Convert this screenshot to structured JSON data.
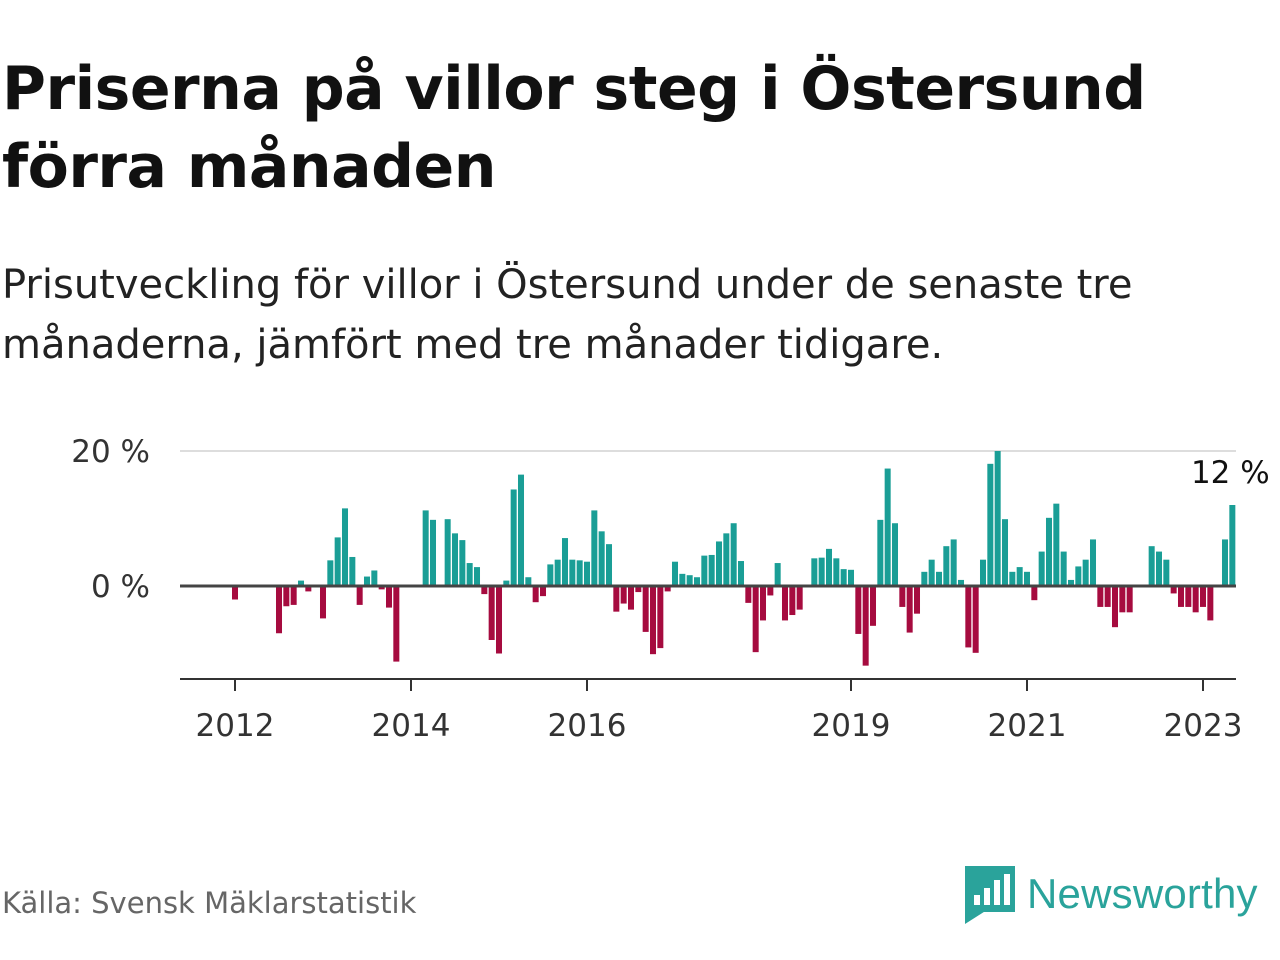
{
  "header": {
    "title": "Priserna på villor steg i Östersund förra månaden",
    "subtitle": "Prisutveckling för villor i Östersund under de senaste tre månaderna, jämfört med tre månader tidigare."
  },
  "footer": {
    "source": "Källa: Svensk Mäklarstatistik",
    "brand": "Newsworthy",
    "brand_icon": "newsworthy-logo-icon"
  },
  "colors": {
    "positive": "#1a9e96",
    "negative": "#a60b3f",
    "grid": "#dddddd",
    "zero_line": "#444444",
    "brand": "#2aa39b"
  },
  "chart_data": {
    "type": "bar",
    "title": "Priserna på villor steg i Östersund förra månaden",
    "subtitle": "Prisutveckling för villor i Östersund under de senaste tre månaderna, jämfört med tre månader tidigare.",
    "unit": "%",
    "x_start": "2011-06",
    "x_end": "2023-05",
    "ylim": [
      -14,
      20
    ],
    "y_ticks": [
      {
        "value": 0,
        "label": "0 %"
      },
      {
        "value": 20,
        "label": "20 %"
      }
    ],
    "x_ticks": [
      "2012",
      "2014",
      "2016",
      "2019",
      "2021",
      "2023"
    ],
    "grid": true,
    "annotation": {
      "month": "2023-05",
      "label": "12 %"
    },
    "series": [
      {
        "points": [
          {
            "month": "2012-01",
            "value": -2
          },
          {
            "month": "2012-07",
            "value": -7
          },
          {
            "month": "2012-08",
            "value": -3
          },
          {
            "month": "2012-09",
            "value": -2.8
          },
          {
            "month": "2012-10",
            "value": 0.8
          },
          {
            "month": "2012-11",
            "value": -0.8
          },
          {
            "month": "2013-01",
            "value": -4.8
          },
          {
            "month": "2013-02",
            "value": 3.8
          },
          {
            "month": "2013-03",
            "value": 7.2
          },
          {
            "month": "2013-04",
            "value": 11.5
          },
          {
            "month": "2013-05",
            "value": 4.3
          },
          {
            "month": "2013-06",
            "value": -2.8
          },
          {
            "month": "2013-07",
            "value": 1.4
          },
          {
            "month": "2013-08",
            "value": 2.3
          },
          {
            "month": "2013-09",
            "value": -0.5
          },
          {
            "month": "2013-10",
            "value": -3.2
          },
          {
            "month": "2013-11",
            "value": -11.2
          },
          {
            "month": "2014-03",
            "value": 11.2
          },
          {
            "month": "2014-04",
            "value": 9.8
          },
          {
            "month": "2014-06",
            "value": 9.9
          },
          {
            "month": "2014-07",
            "value": 7.8
          },
          {
            "month": "2014-08",
            "value": 6.8
          },
          {
            "month": "2014-09",
            "value": 3.4
          },
          {
            "month": "2014-10",
            "value": 2.8
          },
          {
            "month": "2014-11",
            "value": -1.2
          },
          {
            "month": "2014-12",
            "value": -8
          },
          {
            "month": "2015-01",
            "value": -10
          },
          {
            "month": "2015-02",
            "value": 0.8
          },
          {
            "month": "2015-03",
            "value": 14.3
          },
          {
            "month": "2015-04",
            "value": 16.5
          },
          {
            "month": "2015-05",
            "value": 1.3
          },
          {
            "month": "2015-06",
            "value": -2.4
          },
          {
            "month": "2015-07",
            "value": -1.5
          },
          {
            "month": "2015-08",
            "value": 3.2
          },
          {
            "month": "2015-09",
            "value": 3.9
          },
          {
            "month": "2015-10",
            "value": 7.1
          },
          {
            "month": "2015-11",
            "value": 3.9
          },
          {
            "month": "2015-12",
            "value": 3.8
          },
          {
            "month": "2016-01",
            "value": 3.6
          },
          {
            "month": "2016-02",
            "value": 11.2
          },
          {
            "month": "2016-03",
            "value": 8.1
          },
          {
            "month": "2016-04",
            "value": 6.2
          },
          {
            "month": "2016-05",
            "value": -3.8
          },
          {
            "month": "2016-06",
            "value": -2.6
          },
          {
            "month": "2016-07",
            "value": -3.5
          },
          {
            "month": "2016-08",
            "value": -0.9
          },
          {
            "month": "2016-09",
            "value": -6.8
          },
          {
            "month": "2016-10",
            "value": -10.1
          },
          {
            "month": "2016-11",
            "value": -9.2
          },
          {
            "month": "2016-12",
            "value": -0.8
          },
          {
            "month": "2017-01",
            "value": 3.6
          },
          {
            "month": "2017-02",
            "value": 1.8
          },
          {
            "month": "2017-03",
            "value": 1.6
          },
          {
            "month": "2017-04",
            "value": 1.3
          },
          {
            "month": "2017-05",
            "value": 4.5
          },
          {
            "month": "2017-06",
            "value": 4.6
          },
          {
            "month": "2017-07",
            "value": 6.6
          },
          {
            "month": "2017-08",
            "value": 7.8
          },
          {
            "month": "2017-09",
            "value": 9.3
          },
          {
            "month": "2017-10",
            "value": 3.7
          },
          {
            "month": "2017-11",
            "value": -2.5
          },
          {
            "month": "2017-12",
            "value": -9.8
          },
          {
            "month": "2018-01",
            "value": -5.1
          },
          {
            "month": "2018-02",
            "value": -1.4
          },
          {
            "month": "2018-03",
            "value": 3.4
          },
          {
            "month": "2018-04",
            "value": -5.1
          },
          {
            "month": "2018-05",
            "value": -4.3
          },
          {
            "month": "2018-06",
            "value": -3.5
          },
          {
            "month": "2018-08",
            "value": 4.1
          },
          {
            "month": "2018-09",
            "value": 4.2
          },
          {
            "month": "2018-10",
            "value": 5.5
          },
          {
            "month": "2018-11",
            "value": 4.1
          },
          {
            "month": "2018-12",
            "value": 2.5
          },
          {
            "month": "2019-01",
            "value": 2.4
          },
          {
            "month": "2019-02",
            "value": -7.1
          },
          {
            "month": "2019-03",
            "value": -11.8
          },
          {
            "month": "2019-04",
            "value": -5.9
          },
          {
            "month": "2019-05",
            "value": 9.8
          },
          {
            "month": "2019-06",
            "value": 17.4
          },
          {
            "month": "2019-07",
            "value": 9.3
          },
          {
            "month": "2019-08",
            "value": -3.1
          },
          {
            "month": "2019-09",
            "value": -6.9
          },
          {
            "month": "2019-10",
            "value": -4.1
          },
          {
            "month": "2019-11",
            "value": 2.1
          },
          {
            "month": "2019-12",
            "value": 3.9
          },
          {
            "month": "2020-01",
            "value": 2.1
          },
          {
            "month": "2020-02",
            "value": 5.9
          },
          {
            "month": "2020-03",
            "value": 6.9
          },
          {
            "month": "2020-04",
            "value": 0.9
          },
          {
            "month": "2020-05",
            "value": -9.1
          },
          {
            "month": "2020-06",
            "value": -9.9
          },
          {
            "month": "2020-07",
            "value": 3.9
          },
          {
            "month": "2020-08",
            "value": 18.1
          },
          {
            "month": "2020-09",
            "value": 20
          },
          {
            "month": "2020-10",
            "value": 9.9
          },
          {
            "month": "2020-11",
            "value": 2.1
          },
          {
            "month": "2020-12",
            "value": 2.8
          },
          {
            "month": "2021-01",
            "value": 2.1
          },
          {
            "month": "2021-02",
            "value": -2.1
          },
          {
            "month": "2021-03",
            "value": 5.1
          },
          {
            "month": "2021-04",
            "value": 10.1
          },
          {
            "month": "2021-05",
            "value": 12.2
          },
          {
            "month": "2021-06",
            "value": 5.1
          },
          {
            "month": "2021-07",
            "value": 0.9
          },
          {
            "month": "2021-08",
            "value": 2.9
          },
          {
            "month": "2021-09",
            "value": 3.9
          },
          {
            "month": "2021-10",
            "value": 6.9
          },
          {
            "month": "2021-11",
            "value": -3.1
          },
          {
            "month": "2021-12",
            "value": -3.1
          },
          {
            "month": "2022-01",
            "value": -6.1
          },
          {
            "month": "2022-02",
            "value": -3.9
          },
          {
            "month": "2022-03",
            "value": -3.9
          },
          {
            "month": "2022-06",
            "value": 5.9
          },
          {
            "month": "2022-07",
            "value": 5.1
          },
          {
            "month": "2022-08",
            "value": 3.9
          },
          {
            "month": "2022-09",
            "value": -1.1
          },
          {
            "month": "2022-10",
            "value": -3.1
          },
          {
            "month": "2022-11",
            "value": -3.1
          },
          {
            "month": "2022-12",
            "value": -3.9
          },
          {
            "month": "2023-01",
            "value": -3.1
          },
          {
            "month": "2023-02",
            "value": -5.1
          },
          {
            "month": "2023-04",
            "value": 6.9
          },
          {
            "month": "2023-05",
            "value": 12
          }
        ]
      }
    ]
  }
}
